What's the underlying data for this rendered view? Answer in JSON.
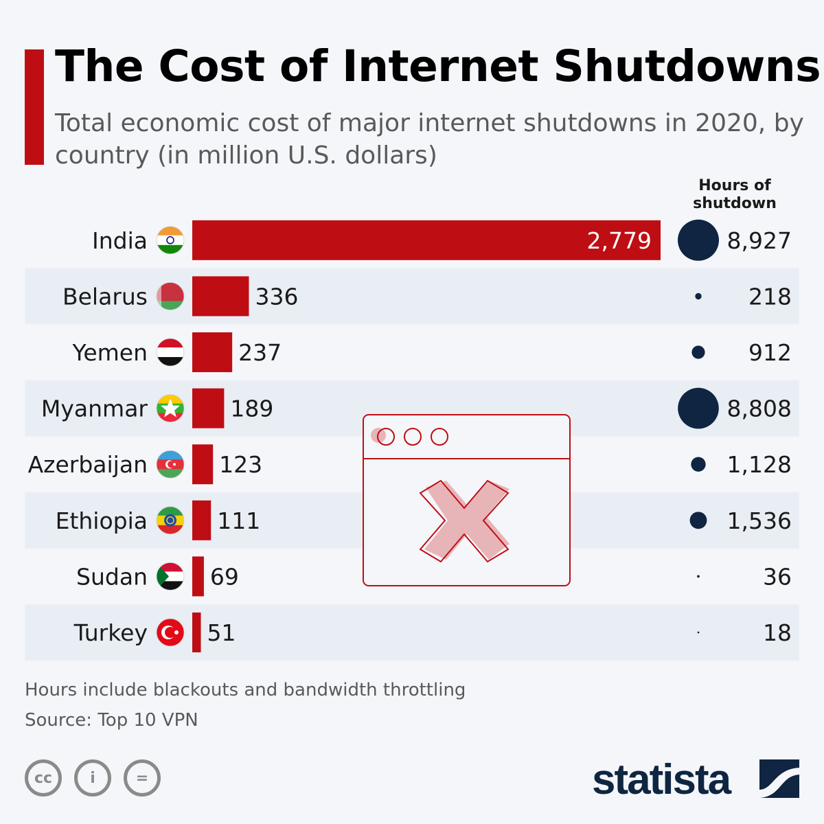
{
  "title": "The Cost of Internet Shutdowns",
  "subtitle": "Total economic cost of major internet shutdowns in 2020, by country (in million U.S. dollars)",
  "hours_header_line1": "Hours of",
  "hours_header_line2": "shutdown",
  "footnote": "Hours include blackouts and bandwidth throttling",
  "source": "Source: Top 10 VPN",
  "brand": "statista",
  "colors": {
    "bar": "#bf0d14",
    "bubble": "#0f2541",
    "stripe": "#e9edf4"
  },
  "chart_data": {
    "type": "bar",
    "title": "The Cost of Internet Shutdowns",
    "xlabel": "",
    "ylabel": "Economic cost (million U.S. dollars)",
    "categories": [
      "India",
      "Belarus",
      "Yemen",
      "Myanmar",
      "Azerbaijan",
      "Ethiopia",
      "Sudan",
      "Turkey"
    ],
    "value_labels": [
      "2,779",
      "336",
      "237",
      "189",
      "123",
      "111",
      "69",
      "51"
    ],
    "series": [
      {
        "name": "Economic cost (million USD)",
        "values": [
          2779,
          336,
          237,
          189,
          123,
          111,
          69,
          51
        ]
      },
      {
        "name": "Hours of shutdown",
        "values": [
          8927,
          218,
          912,
          8808,
          1128,
          1536,
          36,
          18
        ],
        "labels": [
          "8,927",
          "218",
          "912",
          "8,808",
          "1,128",
          "1,536",
          "36",
          "18"
        ]
      }
    ]
  }
}
